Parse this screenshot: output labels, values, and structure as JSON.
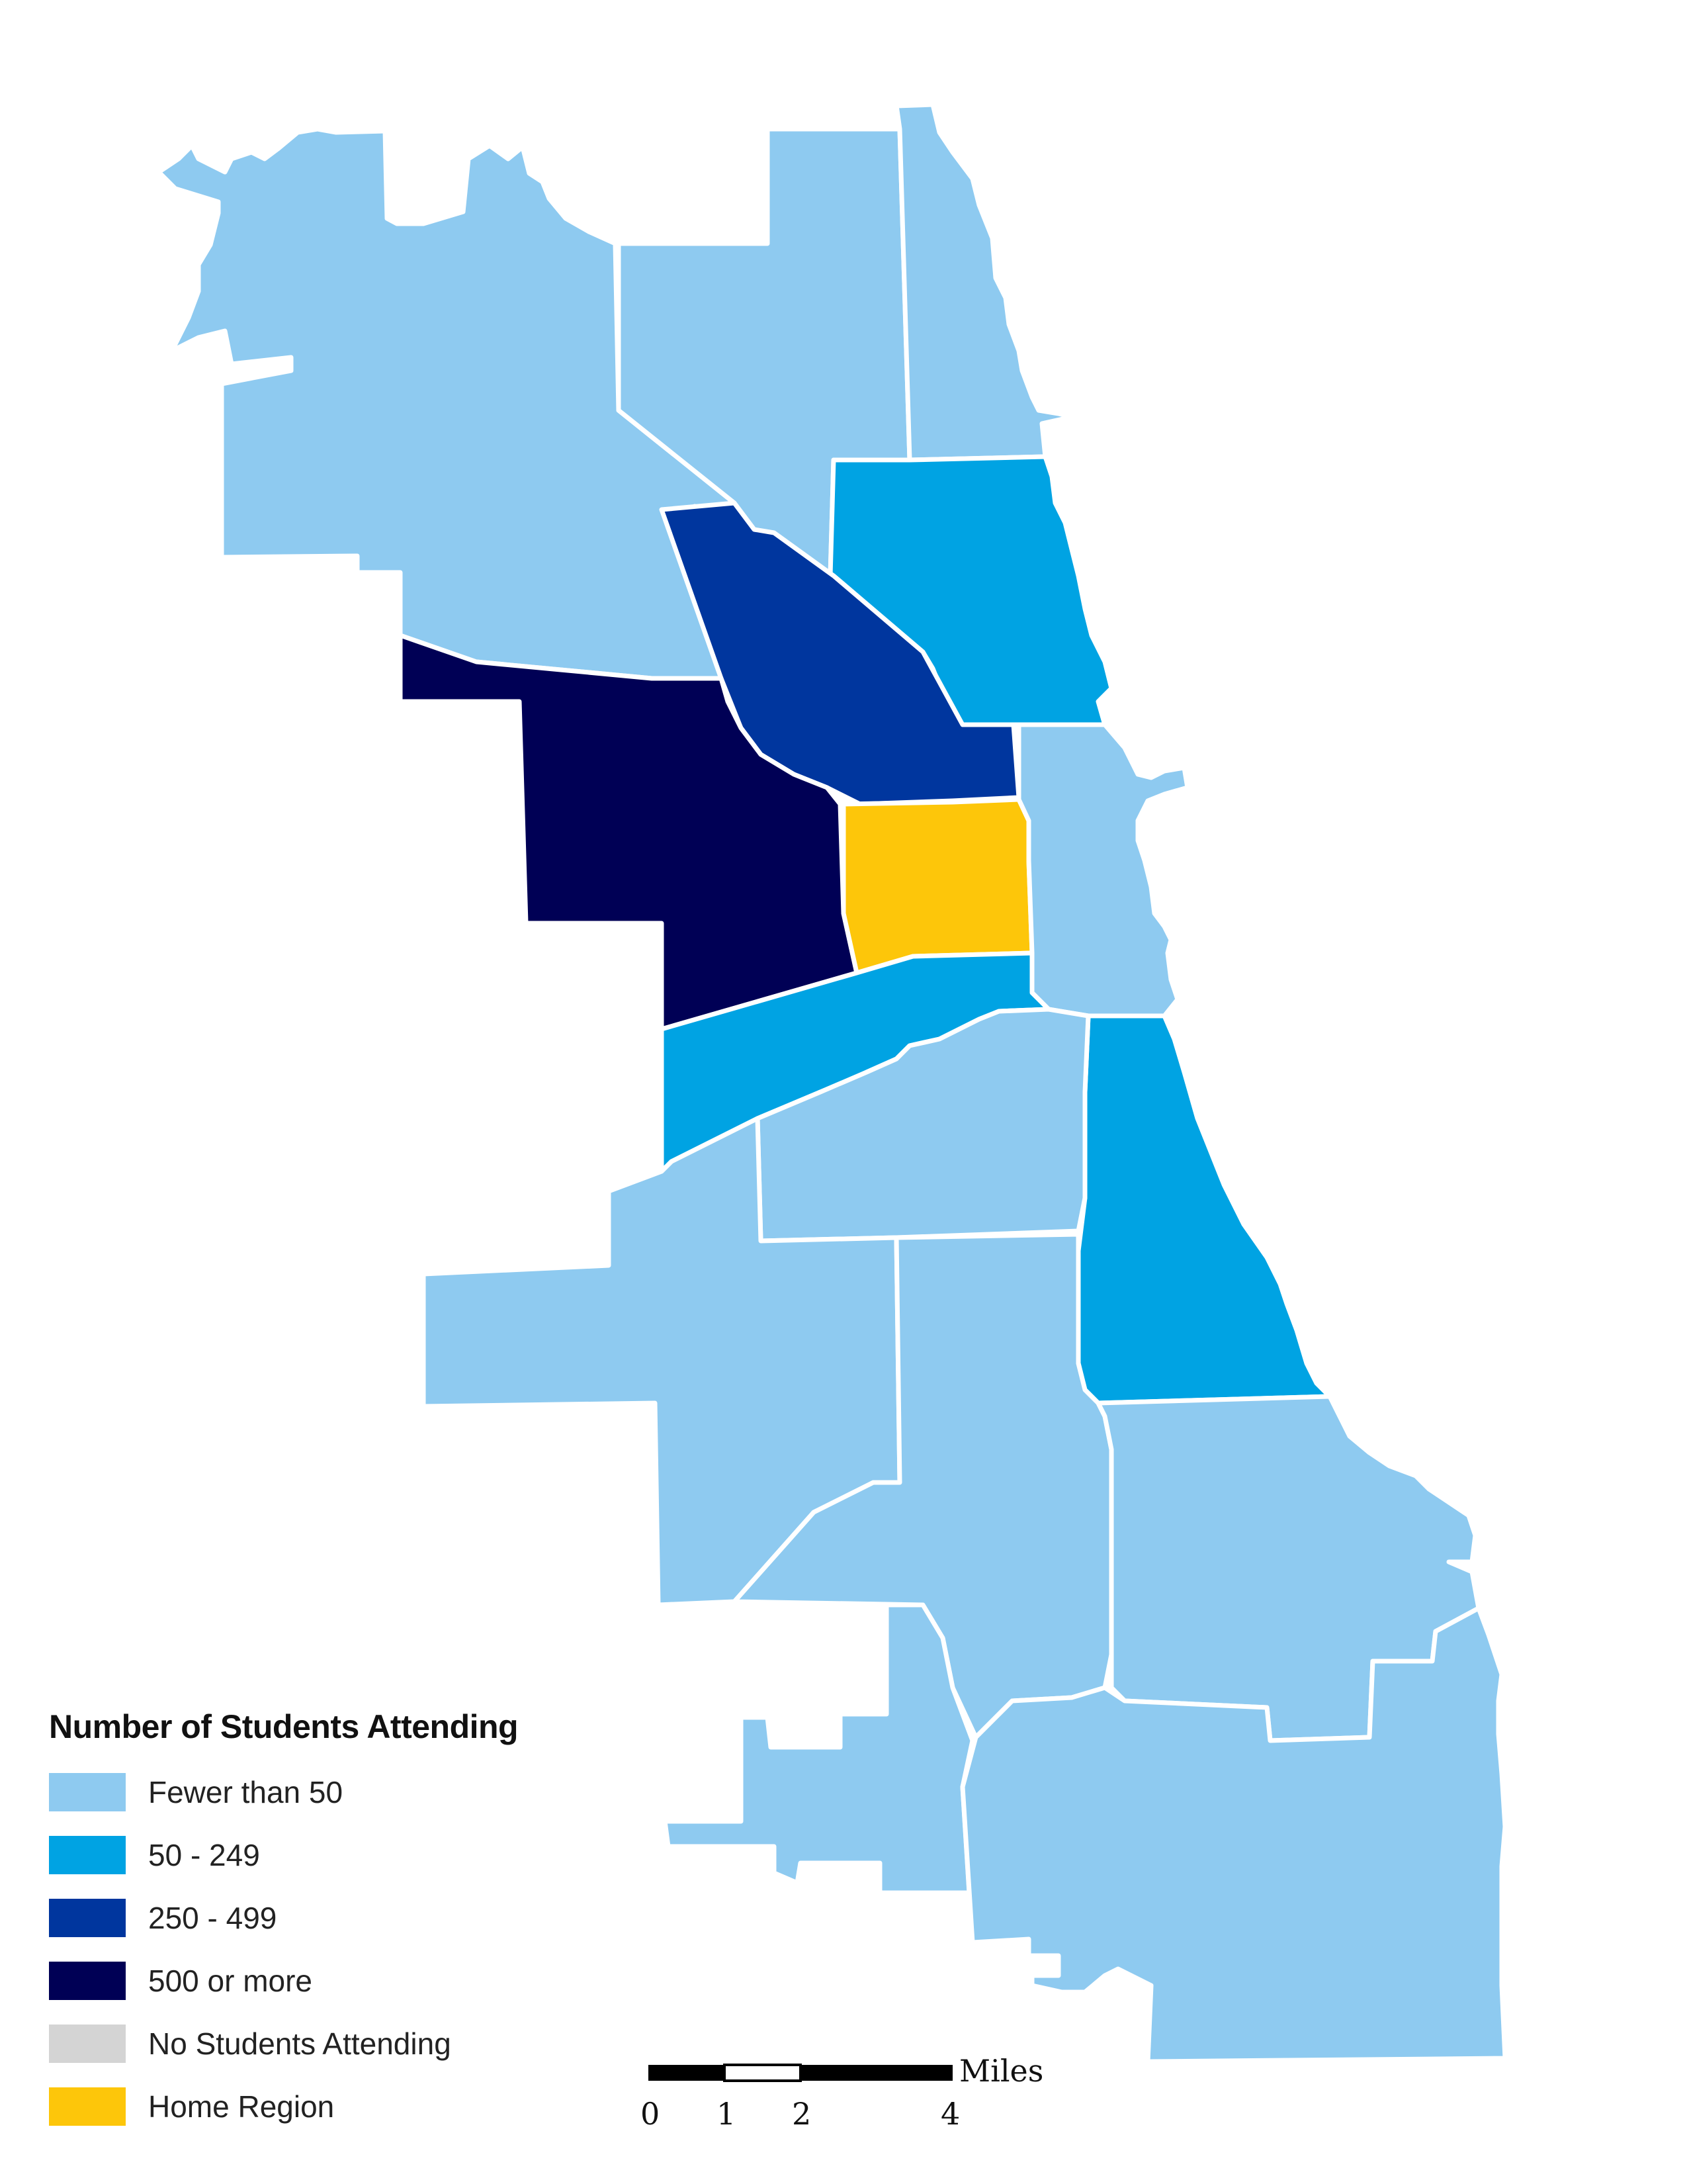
{
  "legend": {
    "title": "Number of Students Attending",
    "items": [
      {
        "label": "Fewer than 50",
        "color": "#8ecaf0"
      },
      {
        "label": "50 - 249",
        "color": "#00a3e3"
      },
      {
        "label": "250 - 499",
        "color": "#00369e"
      },
      {
        "label": "500 or more",
        "color": "#000055"
      },
      {
        "label": "No Students Attending",
        "color": "#d4d4d4"
      },
      {
        "label": "Home Region",
        "color": "#fdc60a"
      }
    ]
  },
  "scale_bar": {
    "unit": "Miles",
    "ticks": [
      "0",
      "1",
      "2",
      "4"
    ]
  }
}
